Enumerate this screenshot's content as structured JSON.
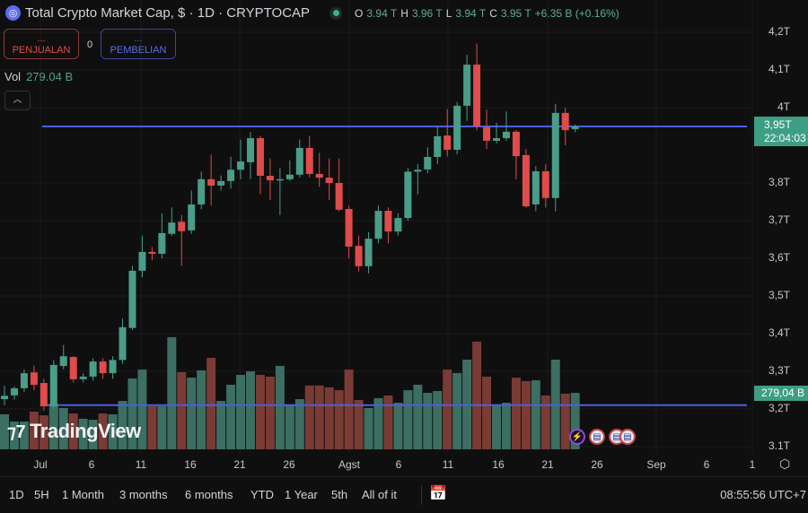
{
  "header": {
    "title": "Total Crypto Market Cap, $ · 1D · CRYPTOCAP",
    "logo_icon": "crypto-cap-icon",
    "ohlc": {
      "o_label": "O",
      "o": "3.94 T",
      "h_label": "H",
      "h": "3.96 T",
      "l_label": "L",
      "l": "3.94 T",
      "c_label": "C",
      "c": "3.95 T",
      "change": "+6.35 B (+0.16%)"
    }
  },
  "trade": {
    "sell_dots": "...",
    "sell_label": "PENJUALAN",
    "spread": "0",
    "buy_dots": "...",
    "buy_label": "PEMBELIAN"
  },
  "volume_legend": {
    "label": "Vol",
    "value": "279.04 B"
  },
  "collapse_icon": "chevron-up-icon",
  "price_label": {
    "price": "3,95T",
    "countdown": "22:04:03"
  },
  "volume_label": "279,04 B",
  "watermark": "TradingView",
  "colors": {
    "up": "#4a9d88",
    "down": "#e04b4b",
    "vol_up": "#3c6e62",
    "vol_down": "#7a3b35",
    "hline": "#4b5fe0",
    "accent": "#3e9e84"
  },
  "bottom_bar": {
    "ranges": [
      "1D",
      "5H",
      "1 Month",
      "3 months",
      "6 months",
      "YTD",
      "1 Year",
      "5th",
      "All of it"
    ],
    "calendar_icon": "goto-date-icon",
    "clock": "08:55:56 UTC+7"
  },
  "chart_data": {
    "type": "candlestick",
    "price_axis_ticks": [
      "4,2T",
      "4,1T",
      "4T",
      "3,8T",
      "3,7T",
      "3,6T",
      "3,5T",
      "3,4T",
      "3,3T",
      "3,2T",
      "3.1T"
    ],
    "price_tick_values": [
      4.2,
      4.1,
      4.0,
      3.8,
      3.7,
      3.6,
      3.5,
      3.4,
      3.3,
      3.2,
      3.1
    ],
    "time_axis_ticks": [
      "Jul",
      "6",
      "11",
      "16",
      "21",
      "26",
      "Agst",
      "6",
      "11",
      "16",
      "21",
      "26",
      "Sep",
      "6",
      "1"
    ],
    "ylim": [
      3.1,
      4.2
    ],
    "y_unit": "T",
    "volume_unit": "B",
    "horizontal_lines": [
      3.95,
      3.21
    ],
    "x": [
      "Jun 27",
      "Jun 28",
      "Jun 29",
      "Jun 30",
      "Jul 1",
      "Jul 2",
      "Jul 3",
      "Jul 4",
      "Jul 5",
      "Jul 6",
      "Jul 7",
      "Jul 8",
      "Jul 9",
      "Jul 10",
      "Jul 11",
      "Jul 12",
      "Jul 13",
      "Jul 14",
      "Jul 15",
      "Jul 16",
      "Jul 17",
      "Jul 18",
      "Jul 19",
      "Jul 20",
      "Jul 21",
      "Jul 22",
      "Jul 23",
      "Jul 24",
      "Jul 25",
      "Jul 26",
      "Jul 27",
      "Jul 28",
      "Jul 29",
      "Jul 30",
      "Jul 31",
      "Aug 1",
      "Aug 2",
      "Aug 3",
      "Aug 4",
      "Aug 5",
      "Aug 6",
      "Aug 7",
      "Aug 8",
      "Aug 9",
      "Aug 10",
      "Aug 11",
      "Aug 12",
      "Aug 13",
      "Aug 14",
      "Aug 15",
      "Aug 16",
      "Aug 17",
      "Aug 18",
      "Aug 19",
      "Aug 20",
      "Aug 21",
      "Aug 22",
      "Aug 23",
      "Aug 24"
    ],
    "ohlc": [
      [
        3.226,
        3.262,
        3.21,
        3.235
      ],
      [
        3.236,
        3.26,
        3.225,
        3.255
      ],
      [
        3.255,
        3.305,
        3.245,
        3.295
      ],
      [
        3.297,
        3.315,
        3.25,
        3.264
      ],
      [
        3.269,
        3.28,
        3.195,
        3.207
      ],
      [
        3.207,
        3.33,
        3.2,
        3.317
      ],
      [
        3.314,
        3.37,
        3.305,
        3.34
      ],
      [
        3.338,
        3.34,
        3.27,
        3.279
      ],
      [
        3.279,
        3.295,
        3.27,
        3.286
      ],
      [
        3.286,
        3.335,
        3.275,
        3.326
      ],
      [
        3.326,
        3.335,
        3.28,
        3.295
      ],
      [
        3.295,
        3.34,
        3.28,
        3.33
      ],
      [
        3.33,
        3.44,
        3.32,
        3.417
      ],
      [
        3.415,
        3.58,
        3.41,
        3.567
      ],
      [
        3.567,
        3.66,
        3.55,
        3.617
      ],
      [
        3.617,
        3.63,
        3.595,
        3.612
      ],
      [
        3.612,
        3.72,
        3.6,
        3.667
      ],
      [
        3.665,
        3.735,
        3.66,
        3.695
      ],
      [
        3.697,
        3.715,
        3.58,
        3.672
      ],
      [
        3.674,
        3.78,
        3.665,
        3.743
      ],
      [
        3.743,
        3.83,
        3.73,
        3.81
      ],
      [
        3.81,
        3.875,
        3.74,
        3.793
      ],
      [
        3.793,
        3.82,
        3.78,
        3.805
      ],
      [
        3.805,
        3.87,
        3.785,
        3.835
      ],
      [
        3.835,
        3.915,
        3.81,
        3.857
      ],
      [
        3.855,
        3.935,
        3.81,
        3.919
      ],
      [
        3.919,
        3.925,
        3.77,
        3.819
      ],
      [
        3.819,
        3.865,
        3.755,
        3.807
      ],
      [
        3.808,
        3.84,
        3.715,
        3.81
      ],
      [
        3.81,
        3.86,
        3.805,
        3.822
      ],
      [
        3.822,
        3.915,
        3.815,
        3.893
      ],
      [
        3.893,
        3.925,
        3.815,
        3.824
      ],
      [
        3.824,
        3.88,
        3.79,
        3.814
      ],
      [
        3.814,
        3.865,
        3.755,
        3.8
      ],
      [
        3.8,
        3.865,
        3.725,
        3.729
      ],
      [
        3.731,
        3.74,
        3.6,
        3.631
      ],
      [
        3.633,
        3.66,
        3.565,
        3.579
      ],
      [
        3.579,
        3.67,
        3.56,
        3.652
      ],
      [
        3.652,
        3.74,
        3.64,
        3.726
      ],
      [
        3.726,
        3.735,
        3.64,
        3.671
      ],
      [
        3.671,
        3.72,
        3.66,
        3.707
      ],
      [
        3.707,
        3.84,
        3.7,
        3.83
      ],
      [
        3.83,
        3.85,
        3.77,
        3.835
      ],
      [
        3.836,
        3.895,
        3.826,
        3.869
      ],
      [
        3.869,
        3.952,
        3.85,
        3.924
      ],
      [
        3.926,
        3.996,
        3.87,
        3.888
      ],
      [
        3.888,
        4.015,
        3.876,
        4.005
      ],
      [
        4.005,
        4.14,
        3.965,
        4.114
      ],
      [
        4.114,
        4.17,
        3.94,
        3.95
      ],
      [
        3.948,
        3.995,
        3.89,
        3.912
      ],
      [
        3.912,
        3.96,
        3.905,
        3.919
      ],
      [
        3.919,
        3.99,
        3.912,
        3.936
      ],
      [
        3.936,
        3.94,
        3.81,
        3.871
      ],
      [
        3.874,
        3.89,
        3.735,
        3.738
      ],
      [
        3.743,
        3.845,
        3.725,
        3.831
      ],
      [
        3.831,
        3.85,
        3.735,
        3.76
      ],
      [
        3.76,
        4.01,
        3.725,
        3.986
      ],
      [
        3.986,
        4.0,
        3.9,
        3.94
      ],
      [
        3.943,
        3.955,
        3.935,
        3.95
      ]
    ],
    "volume": [
      173,
      137,
      137,
      186,
      168,
      226,
      204,
      177,
      151,
      146,
      177,
      173,
      239,
      350,
      394,
      213,
      213,
      554,
      381,
      354,
      390,
      452,
      239,
      319,
      368,
      385,
      368,
      359,
      412,
      222,
      248,
      315,
      315,
      306,
      292,
      394,
      244,
      204,
      253,
      266,
      230,
      292,
      319,
      279,
      288,
      394,
      377,
      443,
      532,
      359,
      222,
      230,
      354,
      337,
      341,
      266,
      443,
      275,
      279.04
    ],
    "events": [
      {
        "icon": "lightning-icon"
      },
      {
        "icon": "us-flag-icon"
      },
      {
        "icon": "us-flag-icon"
      },
      {
        "icon": "us-flag-icon"
      }
    ],
    "grid": true
  }
}
